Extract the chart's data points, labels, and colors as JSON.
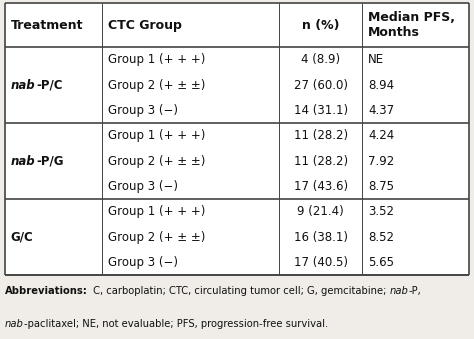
{
  "headers": [
    "Treatment",
    "CTC Group",
    "n (%)",
    "Median PFS,\nMonths"
  ],
  "rows": [
    [
      "nab-P/C",
      "Group 1 (+ + +)",
      "4 (8.9)",
      "NE"
    ],
    [
      "",
      "Group 2 (+ ± ±)",
      "27 (60.0)",
      "8.94"
    ],
    [
      "",
      "Group 3 (−)",
      "14 (31.1)",
      "4.37"
    ],
    [
      "nab-P/G",
      "Group 1 (+ + +)",
      "11 (28.2)",
      "4.24"
    ],
    [
      "",
      "Group 2 (+ ± ±)",
      "11 (28.2)",
      "7.92"
    ],
    [
      "",
      "Group 3 (−)",
      "17 (43.6)",
      "8.75"
    ],
    [
      "G/C",
      "Group 1 (+ + +)",
      "9 (21.4)",
      "3.52"
    ],
    [
      "",
      "Group 2 (+ ± ±)",
      "16 (38.1)",
      "8.52"
    ],
    [
      "",
      "Group 3 (−)",
      "17 (40.5)",
      "5.65"
    ]
  ],
  "treatment_labels": [
    "nab-P/C",
    "nab-P/G",
    "G/C"
  ],
  "treatment_italic_prefix": [
    "nab",
    "nab",
    ""
  ],
  "treatment_regular_suffix": [
    "-P/C",
    "-P/G",
    "G/C"
  ],
  "bg_color": "#f0ede8",
  "line_color": "#444444",
  "text_color": "#111111",
  "font_size": 8.5,
  "header_font_size": 9.0
}
